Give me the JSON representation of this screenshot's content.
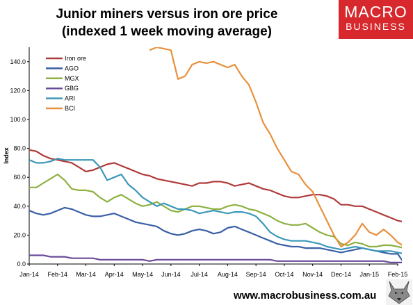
{
  "header": {
    "title_line1": "Junior miners versus iron ore price",
    "title_line2": "(indexed 1 week moving average)"
  },
  "logo": {
    "line1": "MACRO",
    "line2": "BUSINESS"
  },
  "footer": {
    "url": "www.macrobusiness.com.au"
  },
  "chart_data": {
    "type": "line",
    "title": "Junior miners versus iron ore price",
    "subtitle": "(indexed 1 week moving average)",
    "xlabel": "",
    "ylabel": "Index",
    "ylim": [
      0,
      150
    ],
    "yticks": [
      "0.0",
      "20.0",
      "40.0",
      "60.0",
      "80.0",
      "100.0",
      "120.0",
      "140.0"
    ],
    "categories": [
      "Jan-14",
      "Feb-14",
      "Mar-14",
      "Apr-14",
      "May-14",
      "Jun-14",
      "Jul-14",
      "Aug-14",
      "Sep-14",
      "Oct-14",
      "Nov-14",
      "Dec-14",
      "Jan-15",
      "Feb-15"
    ],
    "x": [
      0,
      0.25,
      0.5,
      0.75,
      1.0,
      1.25,
      1.5,
      1.75,
      2.0,
      2.25,
      2.5,
      2.75,
      3.0,
      3.25,
      3.5,
      3.75,
      4.0,
      4.25,
      4.5,
      4.75,
      5.0,
      5.25,
      5.5,
      5.75,
      6.0,
      6.25,
      6.5,
      6.75,
      7.0,
      7.25,
      7.5,
      7.75,
      8.0,
      8.25,
      8.5,
      8.75,
      9.0,
      9.25,
      9.5,
      9.75,
      10.0,
      10.25,
      10.5,
      10.75,
      11.0,
      11.25,
      11.5,
      11.75,
      12.0,
      12.25,
      12.5,
      12.75,
      13.0,
      13.25
    ],
    "grid": false,
    "legend_position": "top-left",
    "series": [
      {
        "name": "Iron ore",
        "color": "#b03a3a",
        "values": [
          79,
          78,
          75,
          73,
          72,
          71,
          70,
          67,
          64,
          65,
          67,
          69,
          70,
          68,
          66,
          64,
          62,
          61,
          59,
          58,
          57,
          56,
          55,
          54,
          56,
          56,
          57,
          57,
          56,
          54,
          55,
          56,
          54,
          52,
          51,
          49,
          47,
          46,
          46,
          47,
          48,
          48,
          47,
          45,
          41,
          41,
          40,
          40,
          38,
          36,
          34,
          32,
          30,
          29
        ]
      },
      {
        "name": "AGO",
        "color": "#3a5fa5",
        "values": [
          37,
          35,
          34,
          35,
          37,
          39,
          38,
          36,
          34,
          33,
          33,
          34,
          35,
          33,
          31,
          29,
          28,
          27,
          26,
          23,
          21,
          20,
          21,
          23,
          24,
          23,
          21,
          22,
          25,
          26,
          24,
          22,
          20,
          18,
          16,
          14,
          13,
          12,
          12,
          11,
          11,
          11,
          10,
          9,
          8,
          9,
          10,
          11,
          10,
          9,
          8,
          7,
          7,
          0
        ]
      },
      {
        "name": "MGX",
        "color": "#8db040",
        "values": [
          53,
          53,
          56,
          59,
          62,
          58,
          52,
          51,
          51,
          50,
          46,
          43,
          46,
          48,
          45,
          42,
          40,
          41,
          43,
          40,
          37,
          36,
          38,
          40,
          40,
          39,
          38,
          38,
          40,
          41,
          40,
          38,
          37,
          35,
          33,
          30,
          28,
          27,
          27,
          28,
          25,
          22,
          20,
          19,
          14,
          13,
          15,
          14,
          12,
          12,
          13,
          13,
          12,
          11
        ]
      },
      {
        "name": "GBG",
        "color": "#6a4a9a",
        "values": [
          6,
          6,
          6,
          5,
          5,
          5,
          4,
          4,
          4,
          4,
          3,
          3,
          3,
          3,
          3,
          3,
          3,
          2,
          3,
          3,
          3,
          3,
          3,
          3,
          3,
          3,
          3,
          3,
          3,
          3,
          3,
          3,
          3,
          3,
          3,
          2,
          2,
          2,
          2,
          2,
          2,
          2,
          2,
          2,
          2,
          2,
          2,
          2,
          2,
          2,
          2,
          1,
          1,
          1
        ]
      },
      {
        "name": "ARI",
        "color": "#3a98b8",
        "values": [
          72,
          70,
          70,
          71,
          73,
          72,
          72,
          72,
          72,
          72,
          67,
          58,
          60,
          62,
          55,
          51,
          46,
          43,
          40,
          42,
          40,
          38,
          38,
          37,
          35,
          36,
          37,
          36,
          35,
          36,
          36,
          35,
          33,
          28,
          22,
          19,
          17,
          16,
          16,
          16,
          15,
          14,
          12,
          11,
          10,
          11,
          12,
          11,
          10,
          9,
          9,
          9,
          8,
          7
        ]
      },
      {
        "name": "BCI",
        "color": "#e8903a",
        "values": [
          null,
          null,
          null,
          null,
          null,
          null,
          null,
          null,
          null,
          null,
          null,
          null,
          null,
          null,
          null,
          null,
          null,
          148,
          150,
          149,
          148,
          128,
          130,
          138,
          140,
          139,
          140,
          138,
          136,
          138,
          130,
          124,
          112,
          98,
          90,
          80,
          72,
          64,
          62,
          55,
          50,
          40,
          30,
          20,
          12,
          15,
          20,
          28,
          22,
          20,
          24,
          20,
          15,
          12
        ]
      }
    ]
  }
}
